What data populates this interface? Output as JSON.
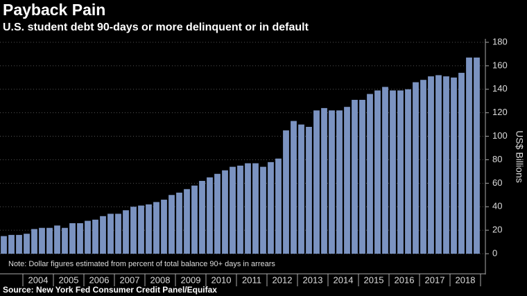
{
  "chart_data": {
    "type": "bar",
    "title": "Payback Pain",
    "subtitle": "U.S. student debt 90-days or more delinquent or in default",
    "y_axis_label": "US$ Billions",
    "note": "Note: Dollar figures estimated from percent of total balance 90+ days in arrears",
    "source": "Source: New York Fed Consumer Credit Panel/Equifax",
    "color": "#7b93c1",
    "categories": [
      null,
      null,
      null,
      null,
      null,
      null,
      null,
      null,
      null,
      null,
      null,
      null,
      null,
      null,
      null,
      null,
      null,
      null,
      null,
      null,
      null,
      null,
      null,
      null,
      null,
      null,
      null,
      null,
      null,
      null,
      null,
      null,
      null,
      null,
      null,
      null,
      null,
      null,
      null,
      null,
      null,
      null,
      null,
      null,
      null,
      null,
      null,
      null,
      null,
      null,
      null,
      null,
      null,
      null,
      null,
      null,
      null,
      null,
      null,
      null,
      null,
      null,
      null
    ],
    "year_labels": [
      "2004",
      "2005",
      "2006",
      "2007",
      "2008",
      "2009",
      "2010",
      "2011",
      "2012",
      "2013",
      "2014",
      "2015",
      "2016",
      "2017",
      "2018"
    ],
    "values": [
      15,
      16,
      16,
      17,
      21,
      22,
      22,
      24,
      22,
      26,
      26,
      28,
      29,
      32,
      34,
      34,
      37,
      40,
      41,
      42,
      44,
      46,
      50,
      52,
      55,
      58,
      62,
      65,
      68,
      71,
      74,
      75,
      77,
      77,
      74,
      78,
      81,
      105,
      113,
      110,
      108,
      122,
      124,
      122,
      122,
      125,
      131,
      131,
      136,
      139,
      142,
      139,
      139,
      140,
      146,
      148,
      151,
      152,
      151,
      150,
      154,
      167,
      167
    ],
    "ylim": [
      0,
      180
    ],
    "yticks": [
      0,
      20,
      40,
      60,
      80,
      100,
      120,
      140,
      160,
      180
    ],
    "grid": true
  }
}
